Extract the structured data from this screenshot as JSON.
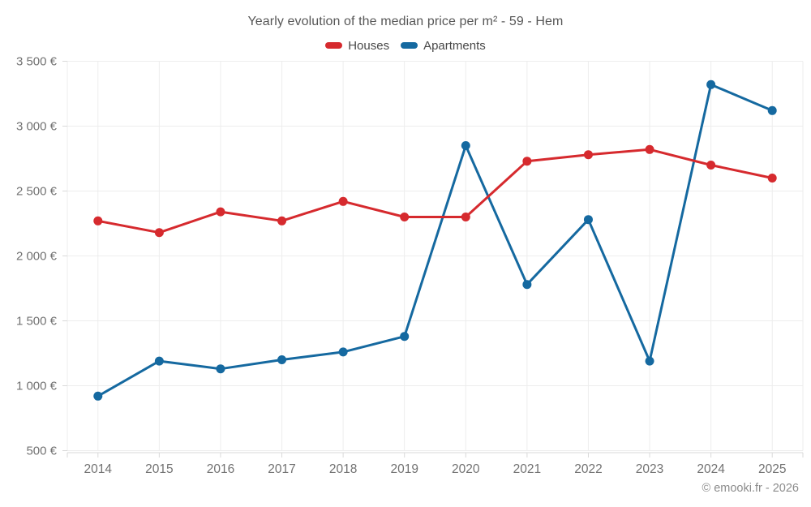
{
  "chart_data": {
    "type": "line",
    "title": "Yearly evolution of the median price per m² - 59 - Hem",
    "categories": [
      "2014",
      "2015",
      "2016",
      "2017",
      "2018",
      "2019",
      "2020",
      "2021",
      "2022",
      "2023",
      "2024",
      "2025"
    ],
    "series": [
      {
        "name": "Houses",
        "color": "#d62a2e",
        "values": [
          2270,
          2180,
          2340,
          2270,
          2420,
          2300,
          2300,
          2730,
          2780,
          2820,
          2700,
          2600
        ]
      },
      {
        "name": "Apartments",
        "color": "#1569a0",
        "values": [
          920,
          1190,
          1130,
          1200,
          1260,
          1380,
          2850,
          1780,
          2280,
          1190,
          3320,
          3120
        ]
      }
    ],
    "ylim": [
      500,
      3500
    ],
    "y_ticks": [
      {
        "value": 3500,
        "label": "3 500 €"
      },
      {
        "value": 3000,
        "label": "3 000 €"
      },
      {
        "value": 2500,
        "label": "2 500 €"
      },
      {
        "value": 2000,
        "label": "2 000 €"
      },
      {
        "value": 1500,
        "label": "1 500 €"
      },
      {
        "value": 1000,
        "label": "1 000 €"
      },
      {
        "value": 500,
        "label": "500 €"
      }
    ],
    "grid": true,
    "legend_position": "top",
    "marker": "circle",
    "draw_order_note": "Houses (red) rendered on top of Apartments (blue)"
  },
  "footer": {
    "copyright": "© emooki.fr - 2026"
  },
  "colors": {
    "background": "#ffffff",
    "grid": "#ededed",
    "axis": "#d9d9d9",
    "axis_label": "#727272",
    "title_text": "#575757",
    "legend_text": "#484848",
    "footer_text": "#8c8c8c"
  }
}
